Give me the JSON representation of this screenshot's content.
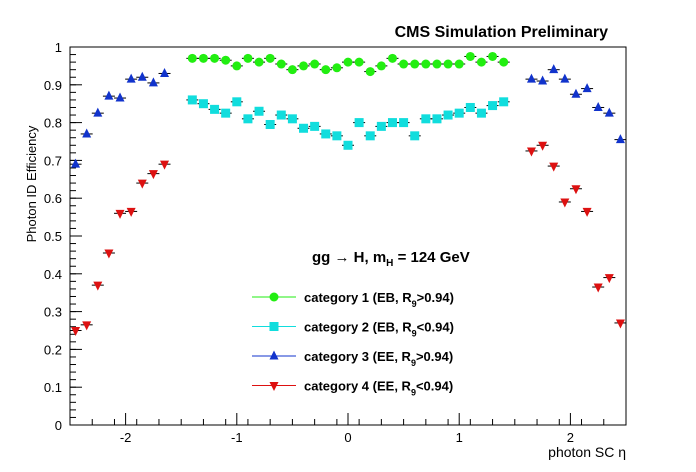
{
  "chart_data": {
    "type": "scatter",
    "title": "CMS Simulation Preliminary",
    "xlabel": "photon SC η",
    "ylabel": "Photon ID Efficiency",
    "xlim": [
      -2.5,
      2.5
    ],
    "ylim": [
      0,
      1
    ],
    "x_ticks": [
      -2,
      -1,
      0,
      1,
      2
    ],
    "x_tick_labels": [
      "-2",
      "-1",
      "0",
      "1",
      "2"
    ],
    "y_ticks": [
      0,
      0.1,
      0.2,
      0.3,
      0.4,
      0.5,
      0.6,
      0.7,
      0.8,
      0.9,
      1
    ],
    "y_tick_labels": [
      "0",
      "0.1",
      "0.2",
      "0.3",
      "0.4",
      "0.5",
      "0.6",
      "0.7",
      "0.8",
      "0.9",
      "1"
    ],
    "grid": false,
    "legend_position": "center-bottom",
    "annotation": {
      "process": "gg → H, m",
      "process_sub": "H",
      "process_tail": " = 124 GeV"
    },
    "series": [
      {
        "name": "category 1 (EB, R₉>0.94)",
        "legend_text": "category 1 (EB, R",
        "legend_sub": "9",
        "legend_tail": ">0.94)",
        "marker": "circle",
        "color": "#22ee11",
        "x": [
          -1.4,
          -1.3,
          -1.2,
          -1.1,
          -1.0,
          -0.9,
          -0.8,
          -0.7,
          -0.6,
          -0.5,
          -0.4,
          -0.3,
          -0.2,
          -0.1,
          0.0,
          0.1,
          0.2,
          0.3,
          0.4,
          0.5,
          0.6,
          0.7,
          0.8,
          0.9,
          1.0,
          1.1,
          1.2,
          1.3,
          1.4
        ],
        "y": [
          0.97,
          0.97,
          0.97,
          0.965,
          0.95,
          0.97,
          0.96,
          0.97,
          0.955,
          0.94,
          0.95,
          0.955,
          0.94,
          0.945,
          0.96,
          0.96,
          0.935,
          0.95,
          0.97,
          0.955,
          0.955,
          0.955,
          0.955,
          0.955,
          0.955,
          0.975,
          0.96,
          0.975,
          0.96
        ]
      },
      {
        "name": "category 2 (EB, R₉<0.94)",
        "legend_text": "category 2 (EB, R",
        "legend_sub": "9",
        "legend_tail": "<0.94)",
        "marker": "square",
        "color": "#11dddd",
        "x": [
          -1.4,
          -1.3,
          -1.2,
          -1.1,
          -1.0,
          -0.9,
          -0.8,
          -0.7,
          -0.6,
          -0.5,
          -0.4,
          -0.3,
          -0.2,
          -0.1,
          0.0,
          0.1,
          0.2,
          0.3,
          0.4,
          0.5,
          0.6,
          0.7,
          0.8,
          0.9,
          1.0,
          1.1,
          1.2,
          1.3,
          1.4
        ],
        "y": [
          0.86,
          0.85,
          0.835,
          0.825,
          0.855,
          0.81,
          0.83,
          0.795,
          0.82,
          0.81,
          0.785,
          0.79,
          0.77,
          0.765,
          0.74,
          0.8,
          0.765,
          0.79,
          0.8,
          0.8,
          0.765,
          0.81,
          0.81,
          0.82,
          0.825,
          0.84,
          0.825,
          0.845,
          0.855
        ]
      },
      {
        "name": "category 3 (EE, R₉>0.94)",
        "legend_text": "category 3 (EE, R",
        "legend_sub": "9",
        "legend_tail": ">0.94)",
        "marker": "triangle-up",
        "color": "#1133cc",
        "x": [
          -2.45,
          -2.35,
          -2.25,
          -2.15,
          -2.05,
          -1.95,
          -1.85,
          -1.75,
          -1.65,
          1.65,
          1.75,
          1.85,
          1.95,
          2.05,
          2.15,
          2.25,
          2.35,
          2.45
        ],
        "y": [
          0.69,
          0.77,
          0.825,
          0.87,
          0.865,
          0.915,
          0.92,
          0.905,
          0.93,
          0.915,
          0.91,
          0.94,
          0.915,
          0.875,
          0.89,
          0.84,
          0.825,
          0.755
        ]
      },
      {
        "name": "category 4 (EE, R₉<0.94)",
        "legend_text": "category 4 (EE, R",
        "legend_sub": "9",
        "legend_tail": "<0.94)",
        "marker": "triangle-down",
        "color": "#dd1111",
        "x": [
          -2.45,
          -2.35,
          -2.25,
          -2.15,
          -2.05,
          -1.95,
          -1.85,
          -1.75,
          -1.65,
          1.65,
          1.75,
          1.85,
          1.95,
          2.05,
          2.15,
          2.25,
          2.35,
          2.45
        ],
        "y": [
          0.25,
          0.265,
          0.37,
          0.455,
          0.56,
          0.565,
          0.64,
          0.665,
          0.69,
          0.725,
          0.74,
          0.685,
          0.59,
          0.625,
          0.565,
          0.365,
          0.39,
          0.27
        ]
      }
    ]
  }
}
